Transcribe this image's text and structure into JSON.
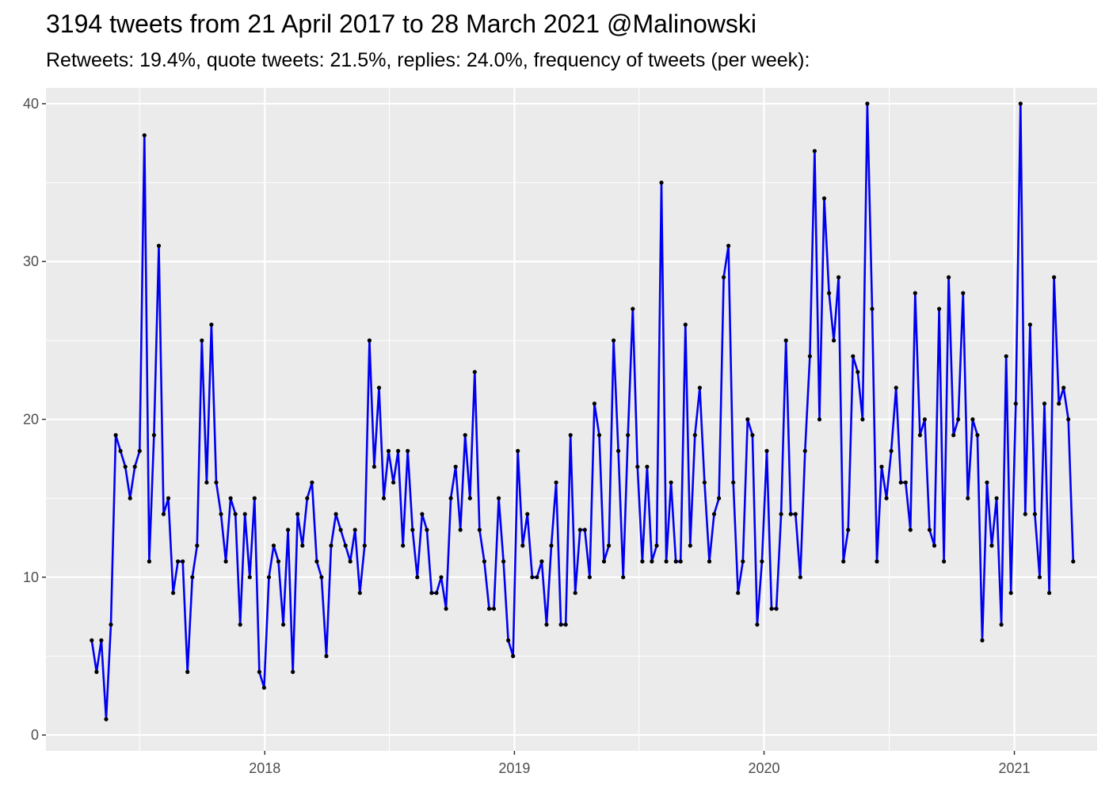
{
  "title": "3194 tweets from 21 April 2017 to 28 March 2021 @Malinowski",
  "subtitle": "Retweets: 19.4%, quote tweets: 21.5%, replies: 24.0%, frequency of tweets (per week):",
  "chart_data": {
    "type": "line",
    "x_start": "2017-04-23",
    "x_step_days": 7,
    "xlim": [
      "2017-02-15",
      "2021-05-02"
    ],
    "ylim": [
      -1,
      41
    ],
    "y_ticks": [
      0,
      10,
      20,
      30,
      40
    ],
    "x_ticks": [
      "2018",
      "2019",
      "2020",
      "2021"
    ],
    "x_tick_dates": [
      "2018-01-01",
      "2019-01-01",
      "2020-01-01",
      "2021-01-01"
    ],
    "grid": true,
    "line_color": "#0000ee",
    "point_color": "#000000",
    "panel_color": "#ebebeb",
    "y": [
      6,
      4,
      6,
      1,
      7,
      19,
      18,
      17,
      15,
      17,
      18,
      38,
      11,
      19,
      31,
      14,
      15,
      9,
      11,
      11,
      4,
      10,
      12,
      25,
      16,
      26,
      16,
      14,
      11,
      15,
      14,
      7,
      14,
      10,
      15,
      4,
      3,
      10,
      12,
      11,
      7,
      13,
      4,
      14,
      12,
      15,
      16,
      11,
      10,
      5,
      12,
      14,
      13,
      12,
      11,
      13,
      9,
      12,
      25,
      17,
      22,
      15,
      18,
      16,
      18,
      12,
      18,
      13,
      10,
      14,
      13,
      9,
      9,
      10,
      8,
      15,
      17,
      13,
      19,
      15,
      23,
      13,
      11,
      8,
      8,
      15,
      11,
      6,
      5,
      18,
      12,
      14,
      10,
      10,
      11,
      7,
      12,
      16,
      7,
      7,
      19,
      9,
      13,
      13,
      10,
      21,
      19,
      11,
      12,
      25,
      18,
      10,
      19,
      27,
      17,
      11,
      17,
      11,
      12,
      35,
      11,
      16,
      11,
      11,
      26,
      12,
      19,
      22,
      16,
      11,
      14,
      15,
      29,
      31,
      16,
      9,
      11,
      20,
      19,
      7,
      11,
      18,
      8,
      8,
      14,
      25,
      14,
      14,
      10,
      18,
      24,
      37,
      20,
      34,
      28,
      25,
      29,
      11,
      13,
      24,
      23,
      20,
      40,
      27,
      11,
      17,
      15,
      18,
      22,
      16,
      16,
      13,
      28,
      19,
      20,
      13,
      12,
      27,
      11,
      29,
      19,
      20,
      28,
      15,
      20,
      19,
      6,
      16,
      12,
      15,
      7,
      24,
      9,
      21,
      40,
      14,
      26,
      14,
      10,
      21,
      9,
      29,
      21,
      22,
      20,
      11
    ]
  }
}
